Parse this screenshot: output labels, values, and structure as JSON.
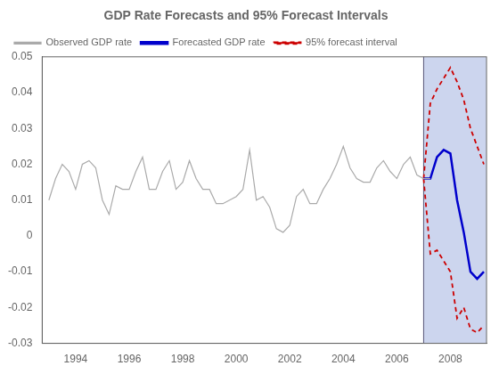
{
  "chart_data": {
    "type": "line",
    "title": "GDP Rate Forecasts and 95% Forecast Intervals",
    "xlim": [
      1992.75,
      2009.35
    ],
    "ylim": [
      -0.03,
      0.05
    ],
    "xticks": [
      1994,
      1996,
      1998,
      2000,
      2002,
      2004,
      2006,
      2008
    ],
    "yticks": [
      -0.03,
      -0.02,
      -0.01,
      0,
      0.01,
      0.02,
      0.03,
      0.04,
      0.05
    ],
    "grid": false,
    "legend": "upper left",
    "shaded_region": {
      "x": [
        2007.0,
        2009.35
      ],
      "color": "#ccd5ee"
    },
    "series": [
      {
        "name": "Observed GDP rate",
        "color": "#aaaaaa",
        "line_style": "solid",
        "x": [
          1993.0,
          1993.25,
          1993.5,
          1993.75,
          1994.0,
          1994.25,
          1994.5,
          1994.75,
          1995.0,
          1995.25,
          1995.5,
          1995.75,
          1996.0,
          1996.25,
          1996.5,
          1996.75,
          1997.0,
          1997.25,
          1997.5,
          1997.75,
          1998.0,
          1998.25,
          1998.5,
          1998.75,
          1999.0,
          1999.25,
          1999.5,
          1999.75,
          2000.0,
          2000.25,
          2000.5,
          2000.75,
          2001.0,
          2001.25,
          2001.5,
          2001.75,
          2002.0,
          2002.25,
          2002.5,
          2002.75,
          2003.0,
          2003.25,
          2003.5,
          2003.75,
          2004.0,
          2004.25,
          2004.5,
          2004.75,
          2005.0,
          2005.25,
          2005.5,
          2005.75,
          2006.0,
          2006.25,
          2006.5,
          2006.75,
          2007.0,
          2007.25
        ],
        "values": [
          0.01,
          0.016,
          0.02,
          0.018,
          0.013,
          0.02,
          0.021,
          0.019,
          0.01,
          0.006,
          0.014,
          0.013,
          0.013,
          0.018,
          0.022,
          0.013,
          0.013,
          0.018,
          0.021,
          0.013,
          0.015,
          0.021,
          0.016,
          0.013,
          0.013,
          0.009,
          0.009,
          0.01,
          0.011,
          0.013,
          0.024,
          0.01,
          0.011,
          0.008,
          0.002,
          0.001,
          0.003,
          0.011,
          0.013,
          0.009,
          0.009,
          0.013,
          0.016,
          0.02,
          0.025,
          0.019,
          0.016,
          0.015,
          0.015,
          0.019,
          0.021,
          0.018,
          0.016,
          0.02,
          0.022,
          0.017,
          0.016,
          0.016
        ]
      },
      {
        "name": "Forecasted GDP rate",
        "color": "#0000cc",
        "line_style": "solid",
        "x": [
          2007.0,
          2007.25,
          2007.5,
          2007.75,
          2008.0,
          2008.25,
          2008.5,
          2008.75,
          2009.0,
          2009.25
        ],
        "values": [
          0.016,
          0.016,
          0.022,
          0.024,
          0.023,
          0.01,
          0.001,
          -0.01,
          -0.012,
          -0.01
        ]
      },
      {
        "name": "95% forecast interval",
        "color": "#cc0000",
        "line_style": "dashed",
        "x": [
          2007.0,
          2007.25,
          2007.5,
          2007.75,
          2008.0,
          2008.25,
          2008.5,
          2008.75,
          2009.0,
          2009.25
        ],
        "values": [
          0.016,
          0.037,
          0.041,
          0.044,
          0.047,
          0.043,
          0.038,
          0.03,
          0.025,
          0.02
        ]
      },
      {
        "name": "95% forecast interval",
        "color": "#cc0000",
        "line_style": "dashed",
        "x": [
          2007.0,
          2007.25,
          2007.5,
          2007.75,
          2008.0,
          2008.25,
          2008.5,
          2008.75,
          2009.0,
          2009.25
        ],
        "values": [
          0.016,
          -0.005,
          -0.004,
          -0.007,
          -0.01,
          -0.023,
          -0.02,
          -0.026,
          -0.027,
          -0.025
        ]
      }
    ]
  }
}
